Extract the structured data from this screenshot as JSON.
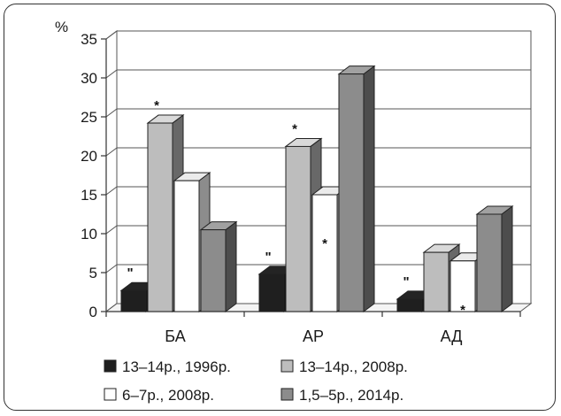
{
  "chart_data": {
    "type": "bar",
    "unit_label": "%",
    "ylim": [
      0,
      35
    ],
    "yticks": [
      "0",
      "5",
      "10",
      "15",
      "20",
      "25",
      "30",
      "35"
    ],
    "categories": [
      "БА",
      "АР",
      "АД"
    ],
    "grid": true,
    "legend_position": "bottom",
    "series": [
      {
        "name": "13–14р., 1996р.",
        "color": "#1f1f1f",
        "values": [
          2.7,
          4.8,
          1.6
        ],
        "marks": [
          "\"",
          "\"",
          "\""
        ]
      },
      {
        "name": "13–14р., 2008р.",
        "color": "#bdbdbd",
        "values": [
          24.2,
          21.2,
          7.6
        ],
        "marks": [
          "*",
          "*",
          ""
        ]
      },
      {
        "name": "6–7р., 2008р.",
        "color": "#ffffff",
        "values": [
          16.8,
          15.0,
          6.5
        ],
        "marks": [
          "",
          "*",
          "*"
        ]
      },
      {
        "name": "1,5–5р., 2014р.",
        "color": "#8c8c8c",
        "values": [
          10.5,
          30.5,
          12.5
        ],
        "marks": [
          "",
          "",
          ""
        ]
      }
    ]
  }
}
